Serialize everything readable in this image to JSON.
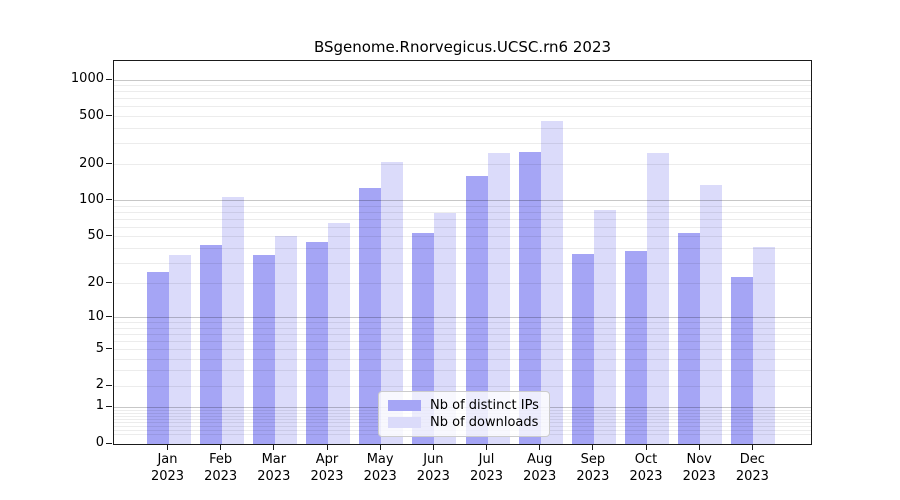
{
  "title": "BSgenome.Rnorvegicus.UCSC.rn6 2023",
  "colors": {
    "distinct_ips_bar": "#a5a5f5",
    "downloads_bar": "#dbdbfa",
    "spine": "#1a1a1a",
    "background": "#ffffff"
  },
  "legend": {
    "entries": [
      {
        "label": "Nb of distinct IPs",
        "color": "#a5a5f5"
      },
      {
        "label": "Nb of downloads",
        "color": "#dbdbfa"
      }
    ]
  },
  "chart_data": {
    "type": "bar",
    "title": "BSgenome.Rnorvegicus.UCSC.rn6 2023",
    "xlabel": "",
    "ylabel": "",
    "scale": "log10(value+1)",
    "grid": "on",
    "legend_position": "lower center",
    "year": "2023",
    "categories": [
      "Jan",
      "Feb",
      "Mar",
      "Apr",
      "May",
      "Jun",
      "Jul",
      "Aug",
      "Sep",
      "Oct",
      "Nov",
      "Dec"
    ],
    "series": [
      {
        "name": "Nb of distinct IPs",
        "color": "#a5a5f5",
        "values": [
          25,
          43,
          35,
          45,
          128,
          54,
          162,
          253,
          36,
          38,
          54,
          23
        ]
      },
      {
        "name": "Nb of downloads",
        "color": "#dbdbfa",
        "values": [
          35,
          107,
          51,
          65,
          210,
          80,
          250,
          455,
          84,
          248,
          135,
          41
        ]
      }
    ],
    "y_ticks": [
      0,
      1,
      2,
      5,
      10,
      20,
      50,
      100,
      200,
      500,
      1000
    ],
    "y_minor_gridlines": [
      0.2,
      0.3,
      0.4,
      0.5,
      0.6,
      0.7,
      0.8,
      0.9,
      2,
      3,
      4,
      5,
      6,
      7,
      8,
      9,
      20,
      30,
      40,
      50,
      60,
      70,
      80,
      90,
      200,
      300,
      400,
      500,
      600,
      700,
      800,
      900
    ],
    "y_major_gridlines": [
      1,
      10,
      100,
      1000
    ],
    "ylim": [
      0,
      1400
    ]
  }
}
